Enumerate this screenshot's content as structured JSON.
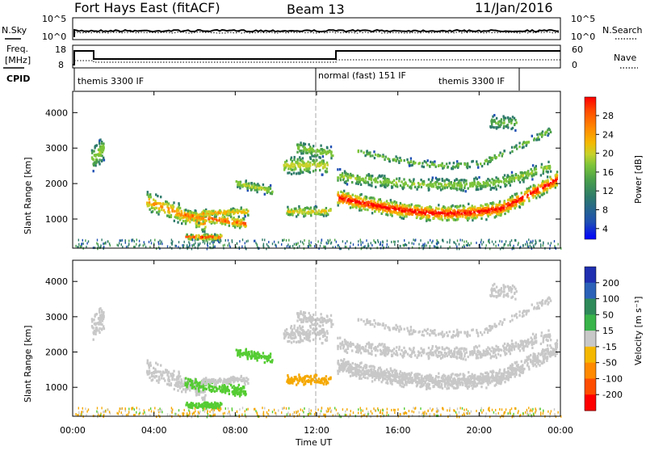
{
  "header": {
    "station": "Fort Hays East (fitACF)",
    "beam": "Beam 13",
    "date": "11/Jan/2016"
  },
  "noise_panel": {
    "left_label": "N.Sky",
    "left_ticks": [
      "10^5",
      "10^0"
    ],
    "right_ticks": [
      "10^5",
      "10^0"
    ],
    "right_label": "N.Search"
  },
  "freq_panel": {
    "left_label_1": "Freq.",
    "left_label_2": "[MHz]",
    "left_ticks": [
      "18",
      "8"
    ],
    "right_ticks": [
      "60",
      "0"
    ],
    "right_label": "Nave"
  },
  "cpid": {
    "label": "CPID",
    "segments": [
      {
        "text": "themis 3300 IF",
        "start_hour": 0
      },
      {
        "text": "normal (fast) 151 IF",
        "start_hour": 12
      },
      {
        "text": "themis 3300 IF",
        "start_hour": 22
      }
    ]
  },
  "chart_data": [
    {
      "type": "heatmap",
      "name": "Power",
      "ylabel": "Slant Range [km]",
      "yticks": [
        "4000",
        "3000",
        "2000",
        "1000"
      ],
      "ylim": [
        180,
        4600
      ],
      "xlim_hours": [
        0,
        24
      ],
      "colorbar_label": "Power [dB]",
      "colorbar_ticks": [
        "28",
        "24",
        "20",
        "16",
        "12",
        "8",
        "4"
      ],
      "colorbar_colors": [
        "#0000ff",
        "#1f4fb3",
        "#2e7b6a",
        "#4aa04a",
        "#7cc43a",
        "#c8d22a",
        "#f5b800",
        "#ff8a00",
        "#ff4d00",
        "#ff0000"
      ]
    },
    {
      "type": "heatmap",
      "name": "Velocity",
      "ylabel": "Slant Range [km]",
      "yticks": [
        "4000",
        "3000",
        "2000",
        "1000"
      ],
      "ylim": [
        180,
        4600
      ],
      "xlim_hours": [
        0,
        24
      ],
      "colorbar_label": "Velocity [m s⁻¹]",
      "colorbar_ticks": [
        "200",
        "100",
        "50",
        "15",
        "-15",
        "-50",
        "-100",
        "-200"
      ],
      "colorbar_colors": [
        "#1f2fb0",
        "#2b62b8",
        "#2f8a5a",
        "#39b44a",
        "#c8c8c8",
        "#f5b800",
        "#ff8a00",
        "#ff4d00",
        "#ff0000"
      ]
    }
  ],
  "xaxis": {
    "ticks": [
      "00:00",
      "04:00",
      "08:00",
      "12:00",
      "16:00",
      "20:00",
      "00:00"
    ],
    "label": "Time UT"
  },
  "colors": {
    "power_high": "#ff0000",
    "power_mid": "#ff8a00",
    "power_low": "#4aa04a",
    "power_lowest": "#1f4fb3",
    "vel_gray": "#c8c8c8",
    "vel_green": "#55cc33",
    "vel_orange": "#f5a800"
  }
}
